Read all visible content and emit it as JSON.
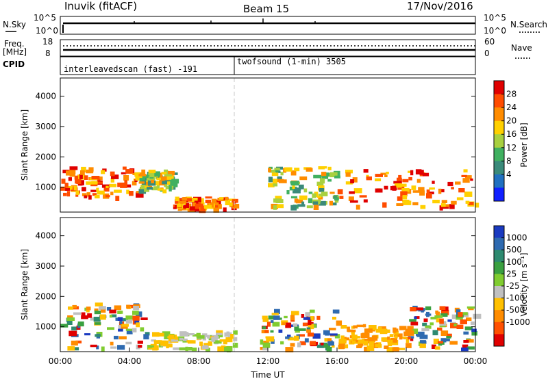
{
  "header": {
    "station": "Inuvik (fitACF)",
    "beam": "Beam 15",
    "date": "17/Nov/2016"
  },
  "strip_panels": {
    "nsky": {
      "label": "N.Sky",
      "left_ticks": [
        "10^5",
        "10^0"
      ],
      "right_ticks": [
        "10^5",
        "10^0"
      ],
      "right_label": "N.Search"
    },
    "freq": {
      "label_line1": "Freq.",
      "label_line2": "[MHz]",
      "left_ticks": [
        "18",
        "8"
      ],
      "right_ticks": [
        "60",
        "0"
      ],
      "right_label": "Nave"
    },
    "cpid": {
      "label": "CPID",
      "segments": [
        {
          "name": "interleavedscan (fast) -191",
          "start_hour": 0
        },
        {
          "name": "twofsound (1-min) 3505",
          "start_hour": 10
        }
      ]
    }
  },
  "chart_data": [
    {
      "type": "heatmap",
      "name": "Power",
      "ylabel": "Slant Range [km]",
      "xlabel": "",
      "ylim": [
        180,
        4600
      ],
      "xlim": [
        0,
        24
      ],
      "yticks": [
        "4000",
        "3000",
        "2000",
        "1000"
      ],
      "colorbar": {
        "label": "Power [dB]",
        "levels": [
          "28",
          "24",
          "20",
          "16",
          "12",
          "8",
          "4"
        ],
        "colors": [
          "#e00000",
          "#ff4c00",
          "#ff8c00",
          "#ffd000",
          "#a8d040",
          "#40b060",
          "#3a8a7a",
          "#2070c0",
          "#1020ff"
        ]
      },
      "regions": [
        {
          "hours": [
            0,
            4.5
          ],
          "range_km": [
            700,
            1700
          ],
          "level": "strong"
        },
        {
          "hours": [
            4.5,
            6.5
          ],
          "range_km": [
            900,
            1600
          ],
          "level": "medium"
        },
        {
          "hours": [
            6.5,
            10
          ],
          "range_km": [
            300,
            700
          ],
          "level": "strong"
        },
        {
          "hours": [
            12,
            16
          ],
          "range_km": [
            400,
            1700
          ],
          "level": "medium"
        },
        {
          "hours": [
            16,
            24
          ],
          "range_km": [
            400,
            1600
          ],
          "level": "strong"
        }
      ]
    },
    {
      "type": "heatmap",
      "name": "Velocity",
      "ylabel": "Slant Range [km]",
      "xlabel": "Time UT",
      "ylim": [
        180,
        4600
      ],
      "xlim": [
        0,
        24
      ],
      "yticks": [
        "4000",
        "3000",
        "2000",
        "1000"
      ],
      "xticks": [
        "00:00",
        "04:00",
        "08:00",
        "12:00",
        "16:00",
        "20:00",
        "00:00"
      ],
      "colorbar": {
        "label": "Velocity [m s⁻¹]",
        "levels": [
          "1000",
          "500",
          "100",
          "25",
          "-25",
          "-100",
          "-500",
          "-1000"
        ],
        "colors": [
          "#1a3ac0",
          "#2e6ab0",
          "#2e8a70",
          "#3aa040",
          "#80cc30",
          "#c0c0c0",
          "#ffc000",
          "#ff8c00",
          "#ff5000",
          "#e00000"
        ]
      },
      "regions": [
        {
          "hours": [
            0,
            5
          ],
          "range_km": [
            300,
            1800
          ],
          "level": "mixed"
        },
        {
          "hours": [
            5,
            10
          ],
          "range_km": [
            300,
            900
          ],
          "level": "slow"
        },
        {
          "hours": [
            11.5,
            16
          ],
          "range_km": [
            300,
            1600
          ],
          "level": "mixed"
        },
        {
          "hours": [
            16,
            20
          ],
          "range_km": [
            300,
            1100
          ],
          "level": "negative"
        },
        {
          "hours": [
            20,
            24
          ],
          "range_km": [
            300,
            1700
          ],
          "level": "mixed"
        }
      ]
    }
  ]
}
